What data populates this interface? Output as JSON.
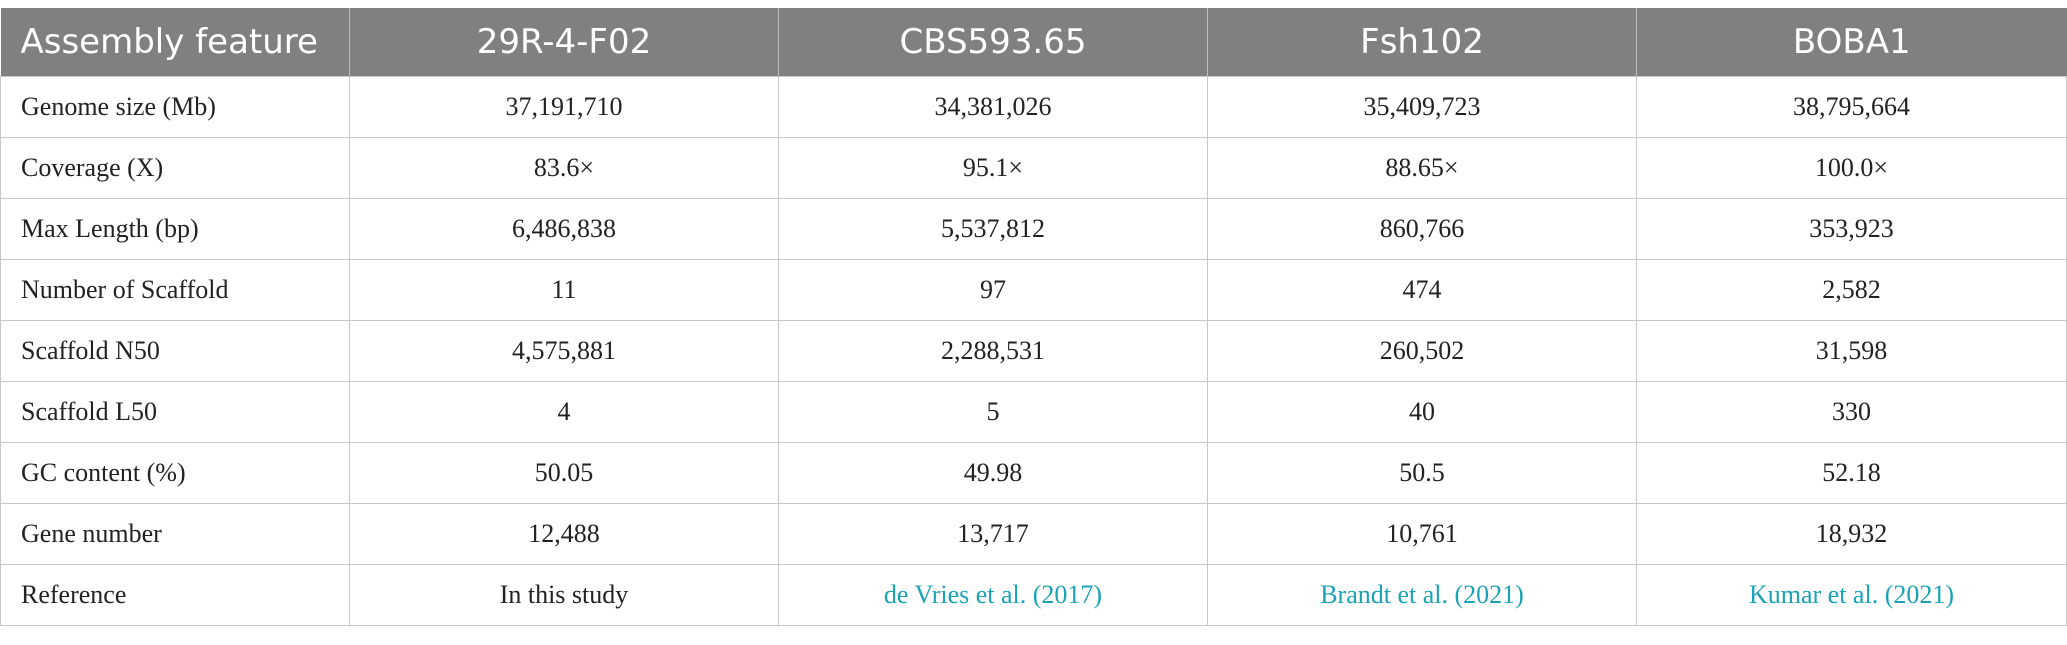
{
  "table": {
    "headers": [
      "Assembly feature",
      "29R-4-F02",
      "CBS593.65",
      "Fsh102",
      "BOBA1"
    ],
    "rows": [
      {
        "label": "Genome size (Mb)",
        "values": [
          "37,191,710",
          "34,381,026",
          "35,409,723",
          "38,795,664"
        ]
      },
      {
        "label": "Coverage (X)",
        "values": [
          "83.6×",
          "95.1×",
          "88.65×",
          "100.0×"
        ]
      },
      {
        "label": "Max Length (bp)",
        "values": [
          "6,486,838",
          "5,537,812",
          "860,766",
          "353,923"
        ]
      },
      {
        "label": "Number of Scaffold",
        "values": [
          "11",
          "97",
          "474",
          "2,582"
        ]
      },
      {
        "label": "Scaffold N50",
        "values": [
          "4,575,881",
          "2,288,531",
          "260,502",
          "31,598"
        ]
      },
      {
        "label": "Scaffold L50",
        "values": [
          "4",
          "5",
          "40",
          "330"
        ]
      },
      {
        "label": "GC content (%)",
        "values": [
          "50.05",
          "49.98",
          "50.5",
          "52.18"
        ]
      },
      {
        "label": "Gene number",
        "values": [
          "12,488",
          "13,717",
          "10,761",
          "18,932"
        ]
      },
      {
        "label": "Reference",
        "values": [
          "In this study",
          "de Vries et al. (2017)",
          "Brandt et al. (2021)",
          "Kumar et al. (2021)"
        ]
      }
    ]
  },
  "colors": {
    "header_bg": "#808080",
    "header_text": "#ffffff",
    "link": "#1aa3b5",
    "grid": "#c8c8c8"
  }
}
